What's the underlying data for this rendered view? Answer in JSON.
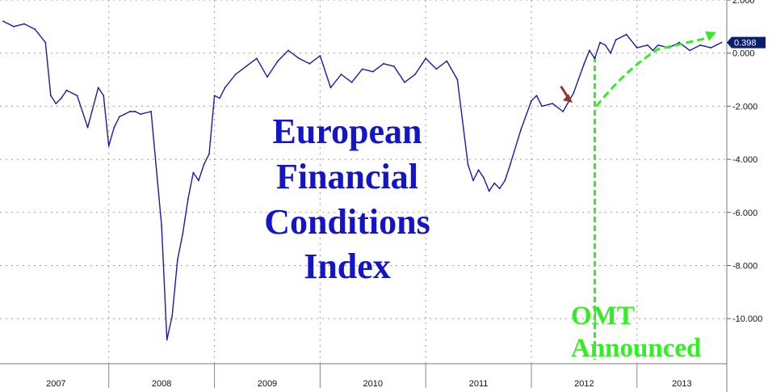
{
  "title_lines": [
    "European",
    "Financial",
    "Conditions",
    "Index"
  ],
  "annotation": {
    "lines": [
      "OMT",
      "Announced"
    ],
    "x": 2012.6
  },
  "last_value_label": "0.398",
  "colors": {
    "series": "#1a1aa8",
    "title": "#1414c8",
    "annotation": "#33ee22",
    "grid": "#9a9a9a",
    "value_box": "#0a1e6e",
    "marker_arrow": "#993333"
  },
  "chart_data": {
    "type": "line",
    "title": "European Financial Conditions Index",
    "xlabel": "",
    "ylabel": "",
    "xlim": [
      2006.97,
      2013.85
    ],
    "ylim": [
      -11.7,
      2.0
    ],
    "y_axis_position": "right",
    "grid": true,
    "x_ticks": [
      "2007",
      "2008",
      "2009",
      "2010",
      "2011",
      "2012",
      "2013"
    ],
    "y_ticks": [
      "2.000",
      "0.000",
      "-2.000",
      "-4.000",
      "-6.000",
      "-8.000",
      "-10.000"
    ],
    "series": [
      {
        "x": [
          2007.0,
          2007.1,
          2007.2,
          2007.3,
          2007.4,
          2007.45,
          2007.5,
          2007.55,
          2007.6,
          2007.7,
          2007.8,
          2007.9,
          2007.95,
          2008.0,
          2008.05,
          2008.1,
          2008.15,
          2008.2,
          2008.25,
          2008.3,
          2008.4,
          2008.5,
          2008.55,
          2008.6,
          2008.65,
          2008.7,
          2008.75,
          2008.8,
          2008.85,
          2008.9,
          2008.95,
          2009.0,
          2009.05,
          2009.1,
          2009.2,
          2009.3,
          2009.4,
          2009.5,
          2009.6,
          2009.7,
          2009.8,
          2009.9,
          2010.0,
          2010.1,
          2010.2,
          2010.3,
          2010.4,
          2010.5,
          2010.6,
          2010.7,
          2010.8,
          2010.9,
          2011.0,
          2011.1,
          2011.2,
          2011.3,
          2011.4,
          2011.45,
          2011.5,
          2011.55,
          2011.6,
          2011.65,
          2011.7,
          2011.75,
          2011.8,
          2011.9,
          2012.0,
          2012.05,
          2012.1,
          2012.2,
          2012.3,
          2012.4,
          2012.5,
          2012.55,
          2012.6,
          2012.65,
          2012.7,
          2012.75,
          2012.8,
          2012.9,
          2013.0,
          2013.1,
          2013.15,
          2013.2,
          2013.3,
          2013.4,
          2013.5,
          2013.6,
          2013.7,
          2013.8
        ],
        "y": [
          1.2,
          1.0,
          1.1,
          0.9,
          0.4,
          -1.6,
          -1.9,
          -1.7,
          -1.4,
          -1.6,
          -2.8,
          -1.3,
          -1.6,
          -3.5,
          -2.8,
          -2.4,
          -2.3,
          -2.2,
          -2.2,
          -2.3,
          -2.2,
          -6.5,
          -10.8,
          -9.9,
          -7.8,
          -6.8,
          -5.5,
          -4.5,
          -4.8,
          -4.2,
          -3.8,
          -1.6,
          -1.7,
          -1.3,
          -0.8,
          -0.5,
          -0.2,
          -0.9,
          -0.3,
          0.1,
          -0.2,
          -0.4,
          -0.1,
          -1.3,
          -0.8,
          -1.1,
          -0.6,
          -0.7,
          -0.4,
          -0.5,
          -1.1,
          -0.8,
          -0.2,
          -0.6,
          -0.3,
          -1.0,
          -4.2,
          -4.8,
          -4.4,
          -4.7,
          -5.2,
          -4.9,
          -5.1,
          -4.8,
          -4.2,
          -2.9,
          -1.8,
          -1.6,
          -2.0,
          -1.9,
          -2.2,
          -1.5,
          -0.4,
          0.1,
          -0.2,
          0.4,
          0.3,
          0.0,
          0.5,
          0.7,
          0.2,
          0.3,
          0.1,
          0.3,
          0.2,
          0.4,
          0.1,
          0.3,
          0.2,
          0.4
        ]
      }
    ]
  }
}
